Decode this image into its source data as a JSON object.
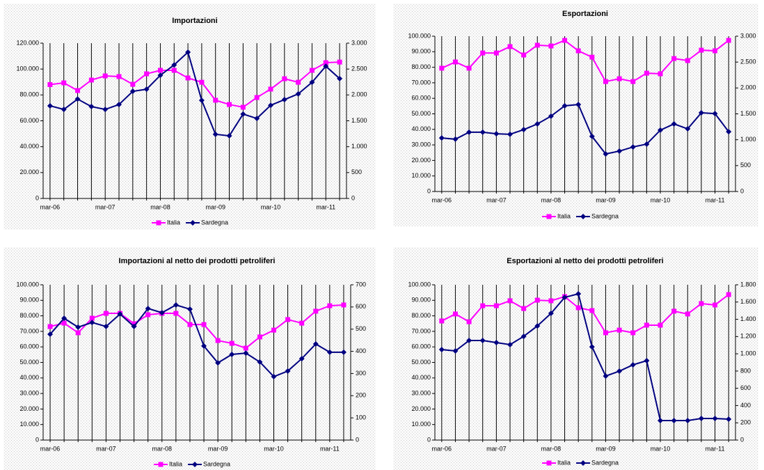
{
  "chart_data": [
    {
      "type": "line",
      "title": "Importazioni",
      "categories": [
        "mar-06",
        null,
        null,
        null,
        "mar-07",
        null,
        null,
        null,
        "mar-08",
        null,
        null,
        null,
        "mar-09",
        null,
        null,
        null,
        "mar-10",
        null,
        null,
        null,
        "mar-11",
        null
      ],
      "series": [
        {
          "name": "Italia",
          "color": "#ff00ff",
          "marker": "square",
          "values": [
            88000,
            89300,
            83400,
            91500,
            94700,
            94200,
            88200,
            96300,
            99000,
            99000,
            93100,
            89800,
            75900,
            72600,
            70500,
            78000,
            84500,
            92500,
            89800,
            99000,
            104900,
            105400
          ]
        },
        {
          "name": "Sardegna",
          "color": "#000080",
          "marker": "diamond",
          "axis": "y2",
          "values": [
            1790,
            1720,
            1920,
            1775,
            1720,
            1815,
            2070,
            2110,
            2380,
            2580,
            2825,
            1895,
            1240,
            1210,
            1630,
            1545,
            1800,
            1910,
            2020,
            2245,
            2555,
            2315
          ]
        }
      ],
      "ylim": [
        0,
        120000
      ],
      "yticks": [
        0,
        {
          "value": 20000,
          "label": "20.000"
        },
        {
          "value": 40000,
          "label": "40.000"
        },
        {
          "value": 60000,
          "label": "60.000"
        },
        {
          "value": 80000,
          "label": "80.000"
        },
        {
          "value": 100000,
          "label": "100.000"
        },
        {
          "value": 120000,
          "label": "120.000"
        }
      ],
      "y2lim": [
        0,
        3000
      ],
      "y2ticks": [
        0,
        500,
        {
          "value": 1000,
          "label": "1.000"
        },
        {
          "value": 1500,
          "label": "1.500"
        },
        {
          "value": 2000,
          "label": "2.000"
        },
        {
          "value": 2500,
          "label": "2.500"
        },
        {
          "value": 3000,
          "label": "3.000"
        }
      ],
      "x_grid": true,
      "legend": "bottom"
    },
    {
      "type": "line",
      "title": "Esportazioni",
      "categories": [
        "mar-06",
        null,
        null,
        null,
        "mar-07",
        null,
        null,
        null,
        "mar-08",
        null,
        null,
        null,
        "mar-09",
        null,
        null,
        null,
        "mar-10",
        null,
        null,
        null,
        "mar-11",
        null
      ],
      "series": [
        {
          "name": "Italia",
          "color": "#ff00ff",
          "marker": "square",
          "values": [
            79400,
            83400,
            79400,
            89200,
            89200,
            93300,
            87900,
            94200,
            93700,
            97300,
            90600,
            86500,
            70800,
            72600,
            70800,
            76200,
            75800,
            85600,
            84300,
            91000,
            90600,
            97300
          ]
        },
        {
          "name": "Sardegna",
          "color": "#000080",
          "marker": "diamond",
          "axis": "y2",
          "values": [
            1035,
            1010,
            1145,
            1145,
            1115,
            1105,
            1195,
            1305,
            1455,
            1655,
            1680,
            1065,
            725,
            780,
            860,
            915,
            1185,
            1305,
            1210,
            1520,
            1505,
            1155
          ]
        }
      ],
      "ylim": [
        0,
        100000
      ],
      "yticks": [
        0,
        {
          "value": 10000,
          "label": "10.000"
        },
        {
          "value": 20000,
          "label": "20.000"
        },
        {
          "value": 30000,
          "label": "30.000"
        },
        {
          "value": 40000,
          "label": "40.000"
        },
        {
          "value": 50000,
          "label": "50.000"
        },
        {
          "value": 60000,
          "label": "60.000"
        },
        {
          "value": 70000,
          "label": "70.000"
        },
        {
          "value": 80000,
          "label": "80.000"
        },
        {
          "value": 90000,
          "label": "90.000"
        },
        {
          "value": 100000,
          "label": "100.000"
        }
      ],
      "y2lim": [
        0,
        3000
      ],
      "y2ticks": [
        0,
        500,
        {
          "value": 1000,
          "label": "1.000"
        },
        {
          "value": 1500,
          "label": "1.500"
        },
        {
          "value": 2000,
          "label": "2.000"
        },
        {
          "value": 2500,
          "label": "2.500"
        },
        {
          "value": 3000,
          "label": "3.000"
        }
      ],
      "x_grid": true,
      "legend": "bottom"
    },
    {
      "type": "line",
      "title": "Importazioni al netto dei prodotti petroliferi",
      "categories": [
        "mar-06",
        null,
        null,
        null,
        "mar-07",
        null,
        null,
        null,
        "mar-08",
        null,
        null,
        null,
        "mar-09",
        null,
        null,
        null,
        "mar-10",
        null,
        null,
        null,
        "mar-11",
        null
      ],
      "series": [
        {
          "name": "Italia",
          "color": "#ff00ff",
          "marker": "square",
          "values": [
            73100,
            75300,
            69100,
            78500,
            81600,
            81600,
            74900,
            80700,
            81600,
            81600,
            74400,
            74400,
            64100,
            62300,
            59200,
            66400,
            70800,
            77600,
            75300,
            83000,
            86500,
            87000
          ]
        },
        {
          "name": "Sardegna",
          "color": "#000080",
          "marker": "diamond",
          "axis": "y2",
          "values": [
            477,
            549,
            509,
            530,
            512,
            568,
            512,
            593,
            574,
            609,
            590,
            424,
            348,
            386,
            392,
            352,
            286,
            311,
            367,
            433,
            396,
            396
          ]
        }
      ],
      "ylim": [
        0,
        100000
      ],
      "yticks": [
        0,
        {
          "value": 10000,
          "label": "10.000"
        },
        {
          "value": 20000,
          "label": "20.000"
        },
        {
          "value": 30000,
          "label": "30.000"
        },
        {
          "value": 40000,
          "label": "40.000"
        },
        {
          "value": 50000,
          "label": "50.000"
        },
        {
          "value": 60000,
          "label": "60.000"
        },
        {
          "value": 70000,
          "label": "70.000"
        },
        {
          "value": 80000,
          "label": "80.000"
        },
        {
          "value": 90000,
          "label": "90.000"
        },
        {
          "value": 100000,
          "label": "100.000"
        }
      ],
      "y2lim": [
        0,
        700
      ],
      "y2ticks": [
        0,
        100,
        200,
        300,
        400,
        500,
        600,
        700
      ],
      "x_grid": true,
      "legend": "bottom"
    },
    {
      "type": "line",
      "title": "Esportazioni al netto dei prodotti petroliferi",
      "categories": [
        "mar-06",
        null,
        null,
        null,
        "mar-07",
        null,
        null,
        null,
        "mar-08",
        null,
        null,
        null,
        "mar-09",
        null,
        null,
        null,
        "mar-10",
        null,
        null,
        null,
        "mar-11",
        null
      ],
      "series": [
        {
          "name": "Italia",
          "color": "#ff00ff",
          "marker": "square",
          "values": [
            76700,
            81200,
            76200,
            86500,
            86500,
            89700,
            84700,
            90100,
            89700,
            92400,
            85200,
            83400,
            69100,
            70800,
            69100,
            74000,
            74000,
            83000,
            81200,
            87900,
            87000,
            93700
          ]
        },
        {
          "name": "Sardegna",
          "color": "#000080",
          "marker": "diamond",
          "axis": "y2",
          "values": [
            1049,
            1033,
            1154,
            1154,
            1130,
            1106,
            1202,
            1323,
            1469,
            1654,
            1695,
            1081,
            742,
            799,
            872,
            920,
            226,
            226,
            226,
            250,
            250,
            242
          ]
        }
      ],
      "ylim": [
        0,
        100000
      ],
      "yticks": [
        0,
        {
          "value": 10000,
          "label": "10.000"
        },
        {
          "value": 20000,
          "label": "20.000"
        },
        {
          "value": 30000,
          "label": "30.000"
        },
        {
          "value": 40000,
          "label": "40.000"
        },
        {
          "value": 50000,
          "label": "50.000"
        },
        {
          "value": 60000,
          "label": "60.000"
        },
        {
          "value": 70000,
          "label": "70.000"
        },
        {
          "value": 80000,
          "label": "80.000"
        },
        {
          "value": 90000,
          "label": "90.000"
        },
        {
          "value": 100000,
          "label": "100.000"
        }
      ],
      "y2lim": [
        0,
        1800
      ],
      "y2ticks": [
        0,
        200,
        400,
        600,
        800,
        {
          "value": 1000,
          "label": "1.000"
        },
        {
          "value": 1200,
          "label": "1.200"
        },
        {
          "value": 1400,
          "label": "1.400"
        },
        {
          "value": 1600,
          "label": "1.600"
        },
        {
          "value": 1800,
          "label": "1.800"
        }
      ],
      "x_grid": true,
      "legend": "bottom"
    }
  ]
}
